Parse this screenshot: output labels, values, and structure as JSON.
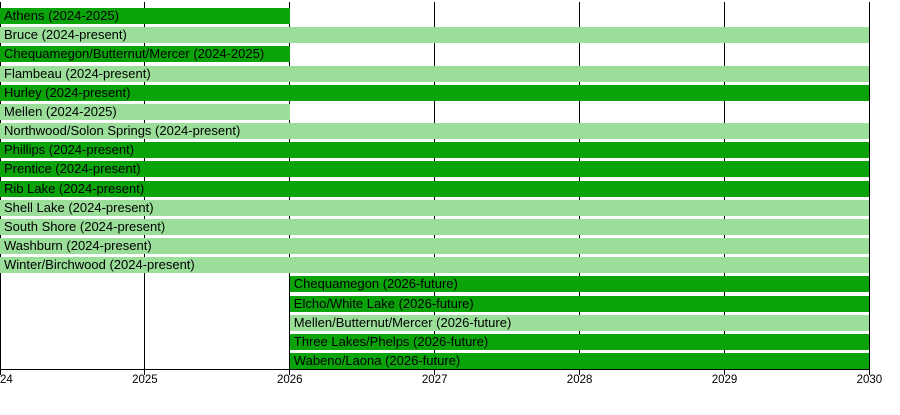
{
  "chart_data": {
    "type": "bar",
    "variant": "gantt-timeline",
    "title": "",
    "background_color": "#ffffff",
    "bar_colors": {
      "dark_green": "#0aa40a",
      "light_green": "#9ade9a"
    },
    "line_color": "#000000",
    "text_color": "#000000",
    "x_axis": {
      "range_years": [
        2024,
        2030
      ],
      "gridlines": true,
      "ticks": [
        {
          "year": 2024,
          "label": "24"
        },
        {
          "year": 2025,
          "label": "2025"
        },
        {
          "year": 2026,
          "label": "2026"
        },
        {
          "year": 2027,
          "label": "2027"
        },
        {
          "year": 2028,
          "label": "2028"
        },
        {
          "year": 2029,
          "label": "2029"
        },
        {
          "year": 2030,
          "label": "2030"
        }
      ]
    },
    "bars": [
      {
        "label": "Athens (2024-2025)",
        "start": 2024,
        "end": 2026,
        "color": "dark_green"
      },
      {
        "label": "Bruce (2024-present)",
        "start": 2024,
        "end": 2030,
        "color": "light_green"
      },
      {
        "label": "Chequamegon/Butternut/Mercer (2024-2025)",
        "start": 2024,
        "end": 2026,
        "color": "dark_green"
      },
      {
        "label": "Flambeau (2024-present)",
        "start": 2024,
        "end": 2030,
        "color": "light_green"
      },
      {
        "label": "Hurley (2024-present)",
        "start": 2024,
        "end": 2030,
        "color": "dark_green"
      },
      {
        "label": "Mellen (2024-2025)",
        "start": 2024,
        "end": 2026,
        "color": "light_green"
      },
      {
        "label": "Northwood/Solon Springs (2024-present)",
        "start": 2024,
        "end": 2030,
        "color": "light_green"
      },
      {
        "label": "Phillips (2024-present)",
        "start": 2024,
        "end": 2030,
        "color": "dark_green"
      },
      {
        "label": "Prentice (2024-present)",
        "start": 2024,
        "end": 2030,
        "color": "dark_green"
      },
      {
        "label": "Rib Lake (2024-present)",
        "start": 2024,
        "end": 2030,
        "color": "dark_green"
      },
      {
        "label": "Shell Lake (2024-present)",
        "start": 2024,
        "end": 2030,
        "color": "light_green"
      },
      {
        "label": "South Shore (2024-present)",
        "start": 2024,
        "end": 2030,
        "color": "light_green"
      },
      {
        "label": "Washburn (2024-present)",
        "start": 2024,
        "end": 2030,
        "color": "light_green"
      },
      {
        "label": "Winter/Birchwood (2024-present)",
        "start": 2024,
        "end": 2030,
        "color": "light_green"
      },
      {
        "label": "Chequamegon (2026-future)",
        "start": 2026,
        "end": 2030,
        "color": "dark_green"
      },
      {
        "label": "Elcho/White Lake (2026-future)",
        "start": 2026,
        "end": 2030,
        "color": "dark_green"
      },
      {
        "label": "Mellen/Butternut/Mercer (2026-future)",
        "start": 2026,
        "end": 2030,
        "color": "light_green"
      },
      {
        "label": "Three Lakes/Phelps (2026-future)",
        "start": 2026,
        "end": 2030,
        "color": "dark_green"
      },
      {
        "label": "Wabeno/Laona (2026-future)",
        "start": 2026,
        "end": 2030,
        "color": "dark_green"
      }
    ]
  }
}
